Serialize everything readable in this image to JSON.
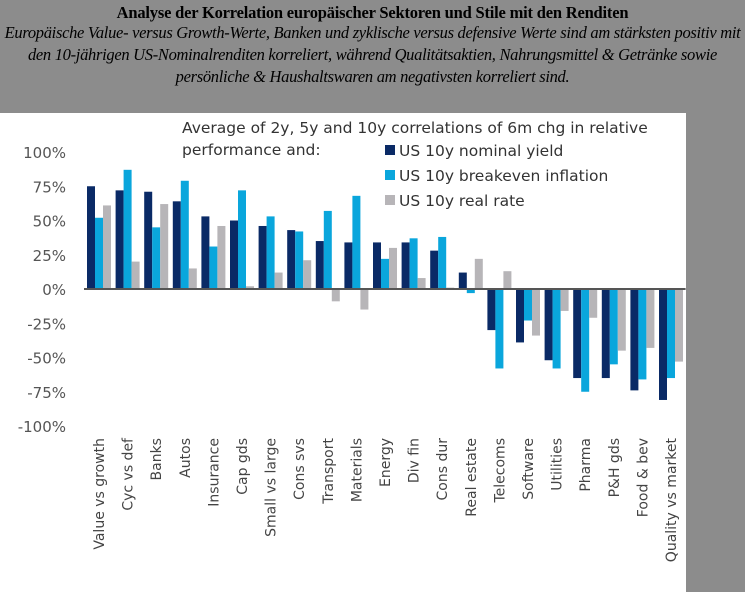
{
  "header": {
    "title": "Analyse der Korrelation europäischer Sektoren und Stile mit den Renditen",
    "subtitle": "Europäische Value- versus Growth-Werte, Banken und zyklische versus defensive Werte sind am stärksten positiv mit den 10-jährigen US-Nominalrenditen korreliert, während Qualitätsaktien, Nahrungsmittel & Getränke sowie persönliche & Haushaltswaren am negativsten korreliert sind."
  },
  "chart_data": {
    "type": "bar",
    "title": "",
    "note_line1": "Average of 2y, 5y and 10y correlations of 6m chg in relative",
    "note_line2": "performance and:",
    "xlabel": "",
    "ylabel": "",
    "ylim": [
      -100,
      100
    ],
    "yticks": [
      100,
      75,
      50,
      25,
      0,
      -25,
      -50,
      -75,
      -100
    ],
    "ytick_labels": [
      "100%",
      "75%",
      "50%",
      "25%",
      "0%",
      "-25%",
      "-50%",
      "-75%",
      "-100%"
    ],
    "grid": false,
    "legend_position": "top-right",
    "categories": [
      "Value vs growth",
      "Cyc vs def",
      "Banks",
      "Autos",
      "Insurance",
      "Cap gds",
      "Small vs large",
      "Cons svs",
      "Transport",
      "Materials",
      "Energy",
      "Div fin",
      "Cons dur",
      "Real estate",
      "Telecoms",
      "Software",
      "Utilities",
      "Pharma",
      "P&H gds",
      "Food & bev",
      "Quality vs market"
    ],
    "series": [
      {
        "name": "US 10y nominal yield",
        "color": "#0a2a66",
        "values": [
          75,
          72,
          71,
          64,
          53,
          50,
          46,
          43,
          35,
          34,
          34,
          34,
          28,
          12,
          -30,
          -39,
          -52,
          -65,
          -65,
          -74,
          -81
        ]
      },
      {
        "name": "US 10y breakeven inflation",
        "color": "#0aa6dc",
        "values": [
          52,
          87,
          45,
          79,
          31,
          72,
          53,
          42,
          57,
          68,
          22,
          37,
          38,
          -3,
          -58,
          -23,
          -58,
          -75,
          -55,
          -66,
          -65
        ]
      },
      {
        "name": "US 10y real rate",
        "color": "#b7b5b8",
        "values": [
          61,
          20,
          62,
          15,
          46,
          2,
          12,
          21,
          -9,
          -15,
          30,
          8,
          1,
          22,
          13,
          -34,
          -16,
          -21,
          -45,
          -43,
          -53
        ]
      }
    ]
  }
}
